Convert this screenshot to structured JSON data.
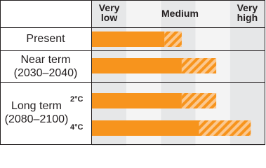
{
  "chart_data": {
    "type": "bar",
    "orientation": "horizontal",
    "categories": [
      "Present",
      "Near term (2030–2040)",
      "2°C",
      "4°C"
    ],
    "group_label": "Long term (2080–2100)",
    "series": [
      {
        "color": "#f7941d",
        "values": [
          2.1,
          2.6,
          2.6,
          3.1
        ]
      },
      {
        "color": "#f7941d",
        "pattern": "hatch",
        "values": [
          0.5,
          1.0,
          1.0,
          1.5
        ]
      }
    ],
    "xlim": [
      0,
      5
    ],
    "xticks": [
      {
        "value": 0.5,
        "label": "Very low"
      },
      {
        "value": 2.5,
        "label": "Medium"
      },
      {
        "value": 4.5,
        "label": "Very high"
      }
    ]
  }
}
